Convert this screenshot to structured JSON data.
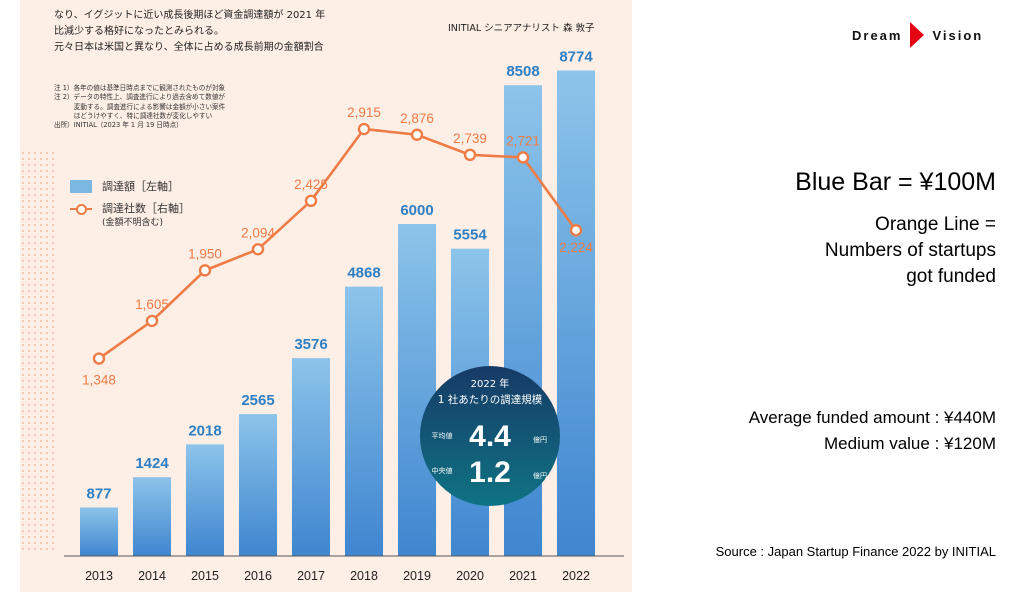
{
  "header": {
    "lines": [
      "なり、イグジットに近い成長後期ほど資金調達額が 2021 年",
      "比減少する格好になったとみられる。",
      "元々日本は米国と異なり、全体に占める成長前期の金額割合"
    ],
    "analyst": "INITIAL シニアアナリスト 森 敦子",
    "notes": [
      "注 1）各年の値は基準日時点までに観測されたものが対象",
      "注 2）データの特性上、調査進行により過去含めて数値が",
      "　　　変動する。調査進行による影響は金額が小さい案件",
      "　　　ほどうけやすく、特に調達社数が変化しやすい",
      "出所）INITIAL（2023 年 1 月 19 日時点）"
    ]
  },
  "legend": {
    "bar_label": "調達額［左軸］",
    "line_label": "調達社数［右軸］",
    "line_note": "(金額不明含む)"
  },
  "callout": {
    "year": "2022 年",
    "subtitle": "1 社あたりの調達規模",
    "mean_label": "平均値",
    "mean_value": "4.4",
    "median_label": "中央値",
    "median_value": "1.2",
    "unit": "億円"
  },
  "right_panel": {
    "logo_left": "Dream",
    "logo_right": "Vision",
    "blue_bar_text": "Blue Bar = ¥100M",
    "orange_lines": [
      "Orange Line =",
      "Numbers of startups",
      "got funded"
    ],
    "avg_text": "Average funded  amount : ¥440M",
    "median_text": "Medium value  : ¥120M",
    "source_text": "Source : Japan Startup Finance 2022 by INITIAL"
  },
  "colors": {
    "bar_top": "#8cc4ea",
    "bar_bottom": "#3f86d0",
    "bar_label": "#2f7fc4",
    "line": "#ef7b45",
    "callout_top": "#163a66",
    "callout_bottom": "#0f7384",
    "logo_red": "#e30613"
  },
  "chart_data": {
    "type": "bar",
    "categories": [
      "2013",
      "2014",
      "2015",
      "2016",
      "2017",
      "2018",
      "2019",
      "2020",
      "2021",
      "2022"
    ],
    "series": [
      {
        "name": "調達額",
        "values": [
          877,
          1424,
          2018,
          2565,
          3576,
          4868,
          6000,
          5554,
          8508,
          8774
        ]
      },
      {
        "name": "調達社数",
        "type": "line",
        "values": [
          1348,
          1605,
          1950,
          2094,
          2425,
          2915,
          2876,
          2739,
          2721,
          2224
        ],
        "labels": [
          "1,348",
          "1,605",
          "1,950",
          "2,094",
          "2,425",
          "2,915",
          "2,876",
          "2,739",
          "2,721",
          "2,224"
        ]
      }
    ],
    "ylim": [
      0,
      9000
    ],
    "y2lim": [
      0,
      3400
    ]
  }
}
